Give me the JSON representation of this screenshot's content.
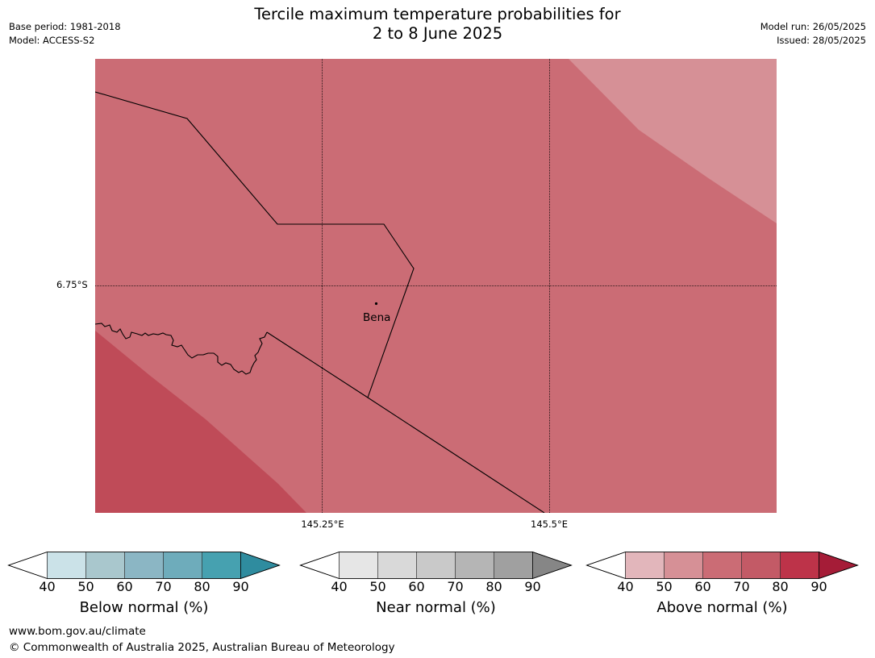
{
  "title_line1": "Tercile maximum temperature probabilities for",
  "title_line2": "2 to 8 June 2025",
  "base_period": "Base period: 1981-2018",
  "model": "Model: ACCESS-S2",
  "model_run": "Model run: 26/05/2025",
  "issued": "Issued: 28/05/2025",
  "map": {
    "lat_label": "6.75°S",
    "lon_labels": [
      "145.25°E",
      "145.5°E"
    ],
    "town": "Bena",
    "fill_colors": {
      "base": "#cb6c75",
      "light": "#d69096",
      "dark": "#bf4b58"
    },
    "dominant_category": "Above normal",
    "dominant_range": "60–70%"
  },
  "legends": [
    {
      "title": "Below normal (%)",
      "ticks": [
        "40",
        "50",
        "60",
        "70",
        "80",
        "90"
      ],
      "colors": [
        "#ffffff",
        "#cbe2e8",
        "#a9c7cd",
        "#8bb6c4",
        "#6eacbb",
        "#46a1b0",
        "#2f8c9f"
      ]
    },
    {
      "title": "Near normal (%)",
      "ticks": [
        "40",
        "50",
        "60",
        "70",
        "80",
        "90"
      ],
      "colors": [
        "#ffffff",
        "#e6e6e6",
        "#d9d9d9",
        "#c9c9c9",
        "#b5b5b5",
        "#a0a0a0",
        "#868686"
      ]
    },
    {
      "title": "Above normal (%)",
      "ticks": [
        "40",
        "50",
        "60",
        "70",
        "80",
        "90"
      ],
      "colors": [
        "#ffffff",
        "#e2b6bb",
        "#d69096",
        "#cb6c75",
        "#c35a66",
        "#bd3349",
        "#a51c37"
      ]
    }
  ],
  "footer_url": "www.bom.gov.au/climate",
  "footer_copyright": "© Commonwealth of Australia 2025, Australian Bureau of Meteorology"
}
